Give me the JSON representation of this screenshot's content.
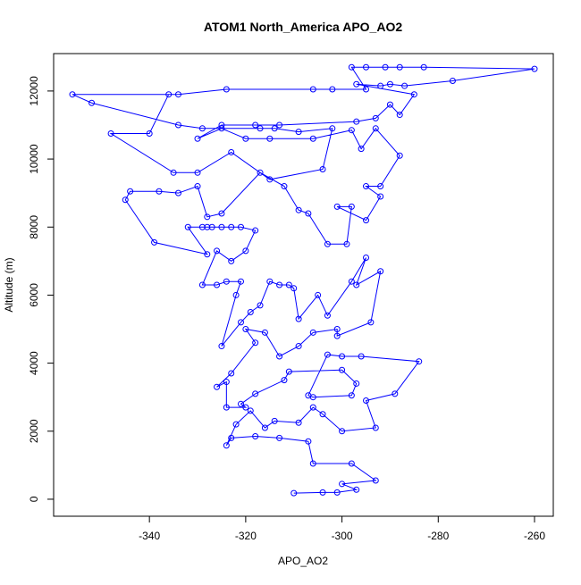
{
  "chart_data": {
    "type": "line",
    "title": "ATOM1 North_America APO_AO2",
    "x_label": "APO_AO2",
    "y_label": "Altitude (m)",
    "color": "#0000ff",
    "markers": true,
    "x": [
      -310,
      -304,
      -301,
      -297,
      -300,
      -293,
      -298,
      -306,
      -307,
      -313,
      -318,
      -323,
      -324,
      -322,
      -319,
      -316,
      -314,
      -309,
      -306,
      -304,
      -300,
      -293,
      -295,
      -289,
      -284,
      -296,
      -300,
      -303,
      -307,
      -306,
      -298,
      -297,
      -300,
      -311,
      -312,
      -318,
      -321,
      -320,
      -324,
      -324,
      -326,
      -323,
      -318,
      -320,
      -316,
      -313,
      -309,
      -306,
      -301,
      -301,
      -294,
      -292,
      -297,
      -295,
      -298,
      -303,
      -305,
      -309,
      -310,
      -311,
      -313,
      -315,
      -317,
      -319,
      -321,
      -325,
      -322,
      -321,
      -324,
      -326,
      -329,
      -326,
      -323,
      -320,
      -318,
      -321,
      -323,
      -325,
      -327,
      -328,
      -329,
      -332,
      -328,
      -339,
      -345,
      -344,
      -338,
      -334,
      -330,
      -328,
      -325,
      -317,
      -312,
      -309,
      -307,
      -303,
      -299,
      -298,
      -301,
      -295,
      -292,
      -295,
      -292,
      -288,
      -293,
      -296,
      -298,
      -306,
      -315,
      -320,
      -325,
      -330,
      -325,
      -318,
      -313,
      -297,
      -293,
      -290,
      -288,
      -285,
      -297,
      -292,
      -290,
      -287,
      -277,
      -260,
      -283,
      -288,
      -291,
      -295,
      -298,
      -295,
      -302,
      -306,
      -324,
      -334,
      -356,
      -352,
      -334,
      -329,
      -317,
      -314,
      -309,
      -302,
      -304,
      -315,
      -323,
      -330,
      -335,
      -348,
      -340,
      -336
    ],
    "values": [
      180,
      200,
      200,
      280,
      450,
      550,
      1050,
      1050,
      1700,
      1800,
      1850,
      1800,
      1580,
      2200,
      2600,
      2100,
      2300,
      2250,
      2700,
      2500,
      2000,
      2100,
      2900,
      3100,
      4050,
      4200,
      4200,
      4250,
      3050,
      3000,
      3050,
      3400,
      3800,
      3750,
      3500,
      3100,
      2800,
      2700,
      2700,
      3450,
      3300,
      3700,
      4600,
      5000,
      4900,
      4200,
      4500,
      4900,
      5000,
      4800,
      5200,
      6700,
      6300,
      7100,
      6400,
      5400,
      6000,
      5300,
      6200,
      6300,
      6300,
      6400,
      5700,
      5500,
      5200,
      4500,
      6000,
      6400,
      6400,
      6300,
      6300,
      7300,
      7000,
      7300,
      7900,
      8000,
      8000,
      8000,
      8000,
      8000,
      8000,
      8000,
      7200,
      7550,
      8800,
      9050,
      9050,
      9000,
      9200,
      8300,
      8400,
      9600,
      9200,
      8500,
      8400,
      7500,
      7500,
      8600,
      8600,
      8200,
      8900,
      9200,
      9200,
      10100,
      10900,
      10300,
      10850,
      10600,
      10600,
      10600,
      10900,
      10600,
      11000,
      11000,
      11000,
      11100,
      11200,
      11600,
      11300,
      11900,
      12200,
      12150,
      12200,
      12150,
      12300,
      12650,
      12700,
      12700,
      12700,
      12700,
      12700,
      12050,
      12050,
      12050,
      12050,
      11900,
      11900,
      11650,
      11000,
      10900,
      10900,
      10900,
      10800,
      10900,
      9700,
      9400,
      10200,
      9600,
      9600,
      10750,
      10750,
      11900
    ],
    "xlim": [
      -359.9,
      -256.1
    ],
    "ylim": [
      -500,
      13100
    ],
    "xticks": [
      -340,
      -320,
      -300,
      -280,
      -260
    ],
    "yticks": [
      0,
      2000,
      4000,
      6000,
      8000,
      10000,
      12000
    ]
  }
}
